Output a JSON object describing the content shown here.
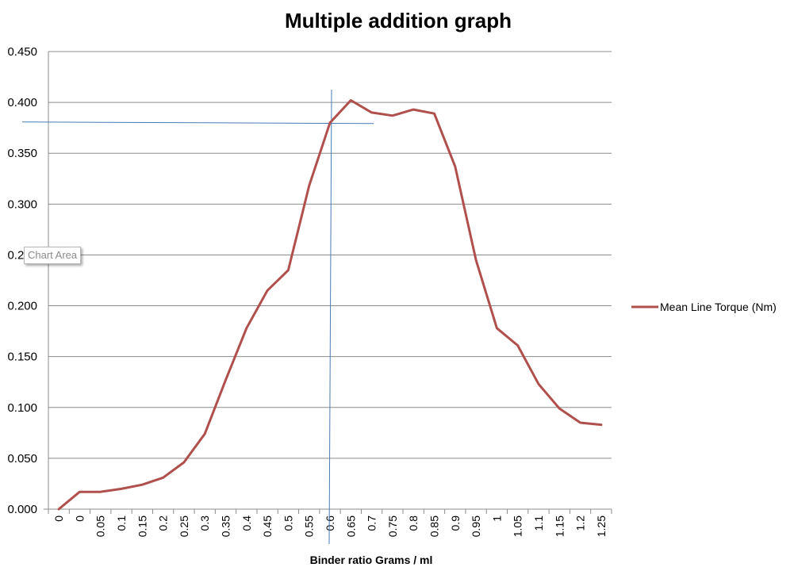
{
  "chart_data": {
    "type": "line",
    "title": "Multiple addition graph",
    "xlabel": "Binder ratio Grams / ml",
    "ylabel": "",
    "ylim": [
      0,
      0.45
    ],
    "yticks": [
      "0.000",
      "0.050",
      "0.100",
      "0.150",
      "0.200",
      "0.250",
      "0.300",
      "0.350",
      "0.400",
      "0.450"
    ],
    "categories": [
      "0",
      "0",
      "0.05",
      "0.1",
      "0.15",
      "0.2",
      "0.25",
      "0.3",
      "0.35",
      "0.4",
      "0.45",
      "0.5",
      "0.55",
      "0.6",
      "0.65",
      "0.7",
      "0.75",
      "0.8",
      "0.85",
      "0.9",
      "0.95",
      "1",
      "1.05",
      "1.1",
      "1.15",
      "1.2",
      "1.25"
    ],
    "series": [
      {
        "name": "Mean Line Torque (Nm)",
        "color": "#b0504c",
        "values": [
          0.0,
          0.017,
          0.017,
          0.02,
          0.024,
          0.031,
          0.046,
          0.074,
          0.127,
          0.178,
          0.215,
          0.235,
          0.318,
          0.38,
          0.402,
          0.39,
          0.387,
          0.393,
          0.389,
          0.337,
          0.245,
          0.178,
          0.161,
          0.123,
          0.099,
          0.085,
          0.083
        ]
      }
    ],
    "grid": true,
    "legend_position": "right",
    "annotations": [
      {
        "type": "vertical-line",
        "x": 0.6,
        "color": "#4a7ab5"
      },
      {
        "type": "horizontal-line",
        "y": 0.38,
        "color": "#4a7ab5"
      }
    ]
  },
  "tooltip": {
    "text": "Chart Area"
  }
}
